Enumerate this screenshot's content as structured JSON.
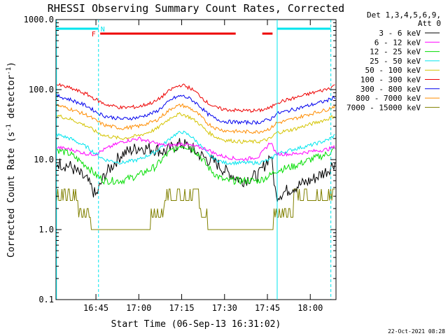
{
  "chart_data": {
    "type": "line",
    "title": "RHESSI Observing Summary Count Rates, Corrected",
    "xlabel": "Start Time (06-Sep-13 16:31:02)",
    "ylabel_main": "Corrected Count Rate (s",
    "ylabel_sup1": "-1",
    "ylabel_mid": " detector",
    "ylabel_sup2": "-1",
    "ylabel_end": ")",
    "yscale": "log",
    "ylim": [
      0.1,
      1000
    ],
    "xlim": [
      16.517,
      18.15
    ],
    "x_ticks": [
      {
        "value": 16.75,
        "label": "16:45"
      },
      {
        "value": 17.0,
        "label": "17:00"
      },
      {
        "value": 17.25,
        "label": "17:15"
      },
      {
        "value": 17.5,
        "label": "17:30"
      },
      {
        "value": 17.75,
        "label": "17:45"
      },
      {
        "value": 18.0,
        "label": "18:00"
      }
    ],
    "y_ticks": [
      {
        "value": 0.1,
        "label": "0.1"
      },
      {
        "value": 1,
        "label": "1.0"
      },
      {
        "value": 10,
        "label": "10.0"
      },
      {
        "value": 100,
        "label": "100.0"
      },
      {
        "value": 1000,
        "label": "1000.0"
      }
    ],
    "legend_header": [
      "Det 1,3,4,5,6,9,",
      "Att 0"
    ],
    "legend_position": "right",
    "x": [
      16.52,
      16.6,
      16.7,
      16.75,
      16.8,
      16.9,
      17.0,
      17.1,
      17.15,
      17.2,
      17.25,
      17.3,
      17.35,
      17.4,
      17.45,
      17.5,
      17.6,
      17.7,
      17.77,
      17.8,
      17.9,
      18.0,
      18.1,
      18.14
    ],
    "series": [
      {
        "name": "3 - 6 keV",
        "color": "#000000",
        "values": [
          9,
          8,
          5,
          3,
          6,
          12,
          15,
          14,
          13,
          15,
          17,
          15,
          12,
          10,
          9,
          7,
          5,
          6,
          12,
          3,
          4,
          5,
          7,
          9
        ]
      },
      {
        "name": "6 - 12 keV",
        "color": "#ff00ff",
        "values": [
          15,
          14,
          12,
          12,
          14,
          18,
          20,
          17,
          16,
          16,
          17,
          16,
          15,
          14,
          12,
          11,
          10,
          11,
          18,
          12,
          12,
          13,
          14,
          15
        ]
      },
      {
        "name": "12 - 25 keV",
        "color": "#00dd00",
        "values": [
          14,
          12,
          8,
          6,
          5,
          5,
          6,
          8,
          11,
          14,
          16,
          15,
          12,
          8,
          6,
          5,
          5,
          5,
          6,
          7,
          8,
          10,
          12,
          14
        ]
      },
      {
        "name": "25 - 50 keV",
        "color": "#00e5ee",
        "values": [
          23,
          20,
          15,
          12,
          10,
          9,
          10,
          13,
          17,
          22,
          25,
          22,
          17,
          12,
          10,
          9,
          9,
          9,
          10,
          12,
          14,
          16,
          19,
          22
        ]
      },
      {
        "name": "50 - 100 keV",
        "color": "#d4c400",
        "values": [
          43,
          38,
          30,
          25,
          22,
          20,
          22,
          27,
          34,
          42,
          45,
          40,
          33,
          25,
          21,
          19,
          18,
          18,
          20,
          24,
          27,
          32,
          38,
          42
        ]
      },
      {
        "name": "100 - 300 keV",
        "color": "#ee0000",
        "values": [
          118,
          105,
          85,
          72,
          62,
          55,
          57,
          68,
          85,
          105,
          117,
          105,
          85,
          65,
          55,
          52,
          50,
          50,
          55,
          65,
          75,
          88,
          102,
          115
        ]
      },
      {
        "name": "300 - 800 keV",
        "color": "#0000ee",
        "values": [
          82,
          72,
          58,
          48,
          42,
          38,
          40,
          48,
          60,
          75,
          82,
          74,
          60,
          45,
          38,
          35,
          34,
          34,
          38,
          45,
          52,
          60,
          70,
          78
        ]
      },
      {
        "name": "800 - 7000 keV",
        "color": "#ff8c00",
        "values": [
          60,
          53,
          43,
          36,
          31,
          28,
          30,
          36,
          45,
          56,
          60,
          54,
          44,
          33,
          28,
          26,
          25,
          25,
          28,
          33,
          38,
          45,
          52,
          58
        ]
      },
      {
        "name": "7000 - 15000 keV",
        "color": "#808000",
        "values": [
          3.5,
          3,
          2,
          1,
          1,
          1,
          1,
          1.8,
          2.5,
          3,
          3.5,
          3,
          2.5,
          1.5,
          1,
          1,
          1,
          1,
          1.2,
          1.8,
          2.5,
          3,
          3,
          3.5
        ]
      }
    ],
    "night_intervals": [
      [
        16.517,
        16.765
      ],
      [
        17.807,
        18.12
      ]
    ],
    "night_label": "N",
    "flare_label": "F",
    "flare_intervals": [
      [
        16.775,
        17.565
      ],
      [
        17.72,
        17.78
      ]
    ],
    "vertical_markers": [
      16.52,
      16.765,
      17.807,
      18.12
    ]
  },
  "footer_date": "22-Oct-2021 08:28",
  "colors": {
    "night": "#00e5ee",
    "flare": "#ee0000",
    "axis": "#000000"
  }
}
